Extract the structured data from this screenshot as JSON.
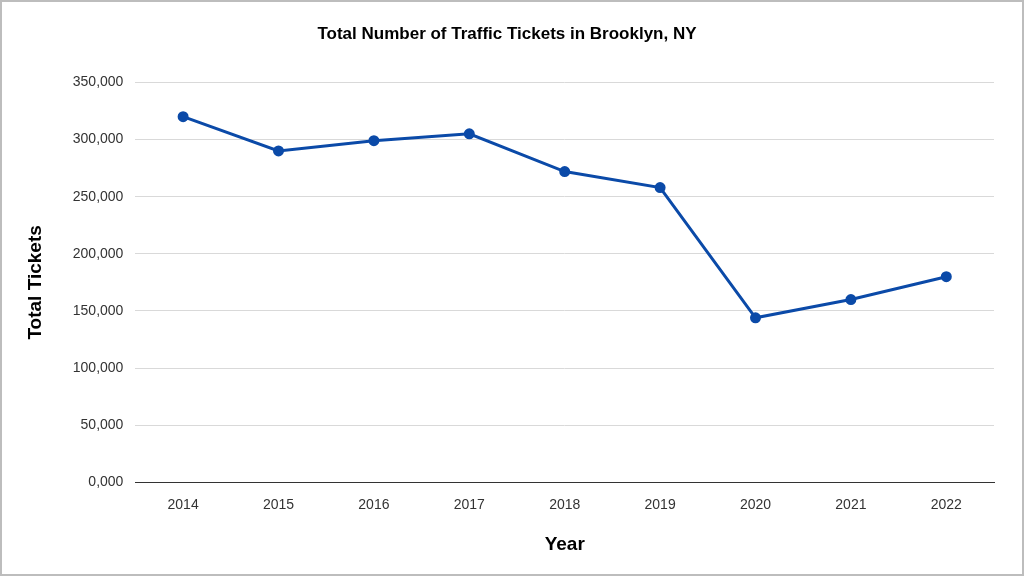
{
  "chart_data": {
    "type": "line",
    "title": "Total Number of Traffic Tickets in Brooklyn, NY",
    "x_label": "Year",
    "y_label": "Total Tickets",
    "categories": [
      "2014",
      "2015",
      "2016",
      "2017",
      "2018",
      "2019",
      "2020",
      "2021",
      "2022"
    ],
    "values": [
      320000,
      290000,
      299000,
      305000,
      272000,
      258000,
      144000,
      160000,
      180000
    ],
    "color": "#0b4aa8",
    "marker": "circle",
    "line_style": "solid",
    "ylim": [
      0,
      350000
    ],
    "yticks": [
      {
        "value": 0,
        "label": "0,000"
      },
      {
        "value": 50000,
        "label": "50,000"
      },
      {
        "value": 100000,
        "label": "100,000"
      },
      {
        "value": 150000,
        "label": "150,000"
      },
      {
        "value": 200000,
        "label": "200,000"
      },
      {
        "value": 250000,
        "label": "250,000"
      },
      {
        "value": 300000,
        "label": "300,000"
      },
      {
        "value": 350000,
        "label": "350,000"
      }
    ],
    "grid": true
  }
}
